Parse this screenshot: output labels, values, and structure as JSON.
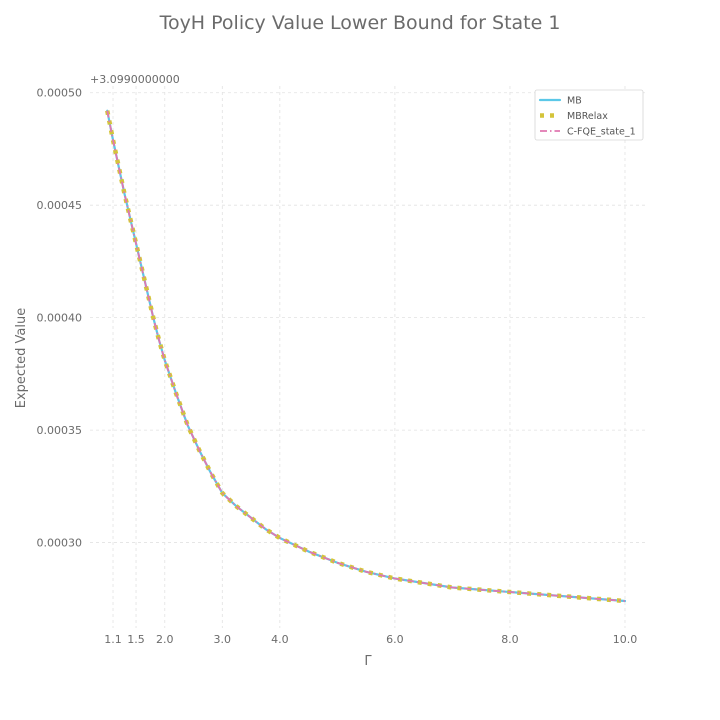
{
  "chart_data": {
    "type": "line",
    "title": "ToyH Policy Value Lower Bound for State 1",
    "xlabel": "Γ",
    "ylabel": "Expected Value",
    "y_offset_label": "+3.0990000000",
    "xlim": [
      0.7,
      10.4
    ],
    "ylim": [
      0.000262,
      0.000503
    ],
    "x_ticks": [
      1.1,
      1.5,
      2.0,
      3.0,
      4.0,
      6.0,
      8.0,
      10.0
    ],
    "x_tick_labels": [
      "1.1",
      "1.5",
      "2.0",
      "3.0",
      "4.0",
      "6.0",
      "8.0",
      "10.0"
    ],
    "y_ticks": [
      0.0003,
      0.00035,
      0.0004,
      0.00045,
      0.0005
    ],
    "y_tick_labels": [
      "0.00030",
      "0.00035",
      "0.00040",
      "0.00045",
      "0.00050"
    ],
    "grid": true,
    "legend_position": "top-right",
    "x": [
      1.0,
      1.1,
      1.2,
      1.3,
      1.4,
      1.5,
      1.6,
      1.7,
      1.8,
      1.9,
      2.0,
      2.2,
      2.4,
      2.6,
      2.8,
      3.0,
      3.25,
      3.5,
      3.75,
      4.0,
      4.5,
      5.0,
      5.5,
      6.0,
      6.5,
      7.0,
      7.5,
      8.0,
      8.5,
      9.0,
      9.5,
      10.0
    ],
    "series": [
      {
        "name": "MB",
        "color": "#5bc8e8",
        "style": "solid",
        "values": [
          0.000492,
          0.000479,
          0.000467,
          0.000455,
          0.000444,
          0.000433,
          0.000422,
          0.000411,
          0.0004,
          0.00039,
          0.000381,
          0.000366,
          0.000352,
          0.000341,
          0.000331,
          0.000322,
          0.000316,
          0.000311,
          0.000306,
          0.000302,
          0.000296,
          0.000291,
          0.000287,
          0.000284,
          0.000282,
          0.00028,
          0.000279,
          0.000278,
          0.000277,
          0.000276,
          0.000275,
          0.000274
        ]
      },
      {
        "name": "MBRelax",
        "color": "#d4c43a",
        "style": "dotted",
        "values": [
          0.000492,
          0.000479,
          0.000467,
          0.000455,
          0.000444,
          0.000433,
          0.000422,
          0.000411,
          0.0004,
          0.00039,
          0.000381,
          0.000366,
          0.000352,
          0.000341,
          0.000331,
          0.000322,
          0.000316,
          0.000311,
          0.000306,
          0.000302,
          0.000296,
          0.000291,
          0.000287,
          0.000284,
          0.000282,
          0.00028,
          0.000279,
          0.000278,
          0.000277,
          0.000276,
          0.000275,
          0.000274
        ]
      },
      {
        "name": "C-FQE_state_1",
        "color": "#e077b0",
        "style": "dashdot",
        "values": [
          0.000492,
          0.000479,
          0.000467,
          0.000455,
          0.000444,
          0.000433,
          0.000422,
          0.000411,
          0.0004,
          0.00039,
          0.000381,
          0.000366,
          0.000352,
          0.000341,
          0.000331,
          0.000322,
          0.000316,
          0.000311,
          0.000306,
          0.000302,
          0.000296,
          0.000291,
          0.000287,
          0.000284,
          0.000282,
          0.00028,
          0.000279,
          0.000278,
          0.000277,
          0.000276,
          0.000275,
          0.000274
        ]
      }
    ]
  }
}
